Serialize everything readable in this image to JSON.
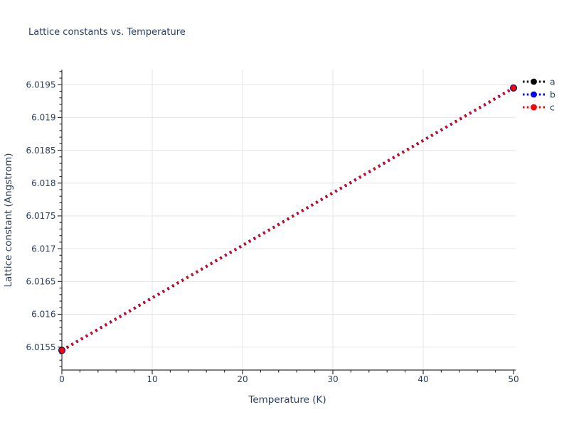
{
  "chart_data": {
    "type": "line",
    "title": "Lattice constants vs. Temperature",
    "xlabel": "Temperature (K)",
    "ylabel": "Lattice constant (Angstrom)",
    "x": [
      0,
      50
    ],
    "series": [
      {
        "name": "a",
        "color": "#000000",
        "values": [
          6.01545,
          6.01945
        ]
      },
      {
        "name": "b",
        "color": "#0000ff",
        "values": [
          6.01545,
          6.01945
        ]
      },
      {
        "name": "c",
        "color": "#ff0000",
        "values": [
          6.01545,
          6.01945
        ]
      }
    ],
    "line_style": "dotted",
    "marker": "circle",
    "xlim": [
      0,
      50
    ],
    "ylim": [
      6.01515,
      6.01973
    ],
    "x_ticks": [
      0,
      10,
      20,
      30,
      40,
      50
    ],
    "x_minor_step": 2,
    "y_ticks": [
      6.0155,
      6.016,
      6.0165,
      6.017,
      6.0175,
      6.018,
      6.0185,
      6.019,
      6.0195
    ],
    "y_minor_step": 0.0001,
    "grid": true,
    "legend": {
      "position": "right-top",
      "entries": [
        "a",
        "b",
        "c"
      ]
    },
    "colors": {
      "text": "#2a3f5f",
      "grid": "#e5e5e5",
      "axis": "#333333",
      "background": "#ffffff"
    }
  }
}
